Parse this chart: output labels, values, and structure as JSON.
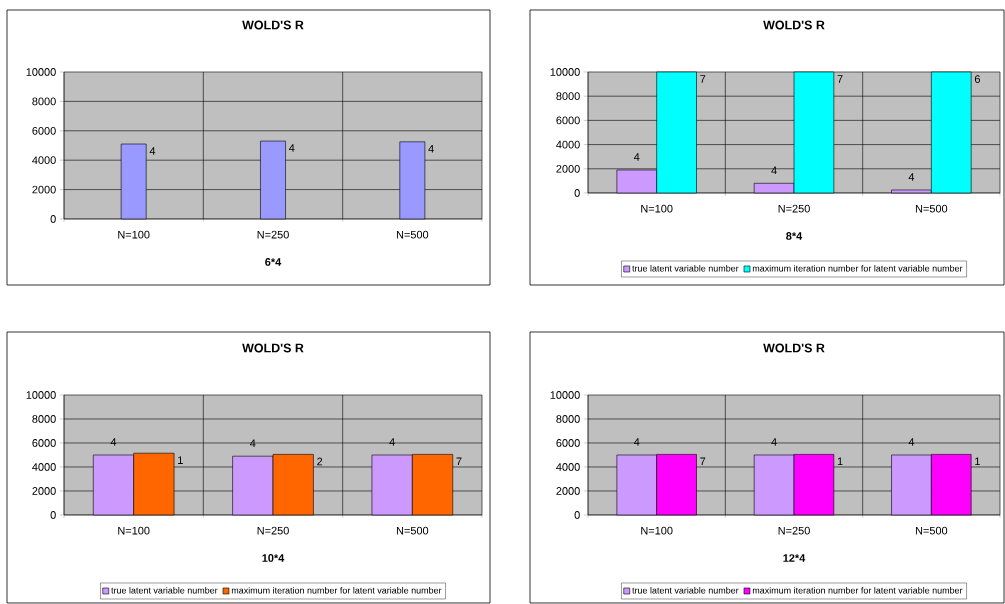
{
  "chart_data": [
    {
      "type": "bar",
      "title": "WOLD'S R",
      "xlabel": "6*4",
      "categories": [
        "N=100",
        "N=250",
        "N=500"
      ],
      "ylim": [
        0,
        10000
      ],
      "yticks": [
        0,
        2000,
        4000,
        6000,
        8000,
        10000
      ],
      "grid": true,
      "series": [
        {
          "color": "#9999ff",
          "values": [
            5100,
            5300,
            5250
          ]
        }
      ],
      "annotations": [
        "4",
        "4",
        "4"
      ]
    },
    {
      "type": "bar",
      "title": "WOLD'S R",
      "xlabel": "8*4",
      "categories": [
        "N=100",
        "N=250",
        "N=500"
      ],
      "ylim": [
        0,
        10000
      ],
      "yticks": [
        0,
        2000,
        4000,
        6000,
        8000,
        10000
      ],
      "grid": true,
      "legend": "bottom",
      "series": [
        {
          "name": "true latent variable number",
          "color": "#cc99ff",
          "values": [
            1900,
            800,
            250
          ]
        },
        {
          "name": "maximum iteration number for latent variable number",
          "color": "#00ffff",
          "values": [
            10000,
            10000,
            10000
          ]
        }
      ],
      "annotations": [
        "4",
        "4",
        "4",
        "7",
        "7",
        "6"
      ]
    },
    {
      "type": "bar",
      "title": "WOLD'S R",
      "xlabel": "10*4",
      "categories": [
        "N=100",
        "N=250",
        "N=500"
      ],
      "ylim": [
        0,
        10000
      ],
      "yticks": [
        0,
        2000,
        4000,
        6000,
        8000,
        10000
      ],
      "grid": true,
      "legend": "bottom",
      "series": [
        {
          "name": "true latent variable number",
          "color": "#cc99ff",
          "values": [
            5000,
            4900,
            5000
          ]
        },
        {
          "name": "maximum iteration number for latent variable number",
          "color": "#ff6600",
          "values": [
            5150,
            5050,
            5050
          ]
        }
      ],
      "annotations": [
        "4",
        "4",
        "4",
        "1",
        "2",
        "7"
      ]
    },
    {
      "type": "bar",
      "title": "WOLD'S R",
      "xlabel": "12*4",
      "categories": [
        "N=100",
        "N=250",
        "N=500"
      ],
      "ylim": [
        0,
        10000
      ],
      "yticks": [
        0,
        2000,
        4000,
        6000,
        8000,
        10000
      ],
      "grid": true,
      "legend": "bottom",
      "series": [
        {
          "name": "true latent variable number",
          "color": "#cc99ff",
          "values": [
            5000,
            5000,
            5000
          ]
        },
        {
          "name": "maximum iteration number for latent variable number",
          "color": "#ff00ff",
          "values": [
            5050,
            5050,
            5050
          ]
        }
      ],
      "annotations": [
        "4",
        "4",
        "4",
        "7",
        "1",
        "1"
      ]
    }
  ]
}
